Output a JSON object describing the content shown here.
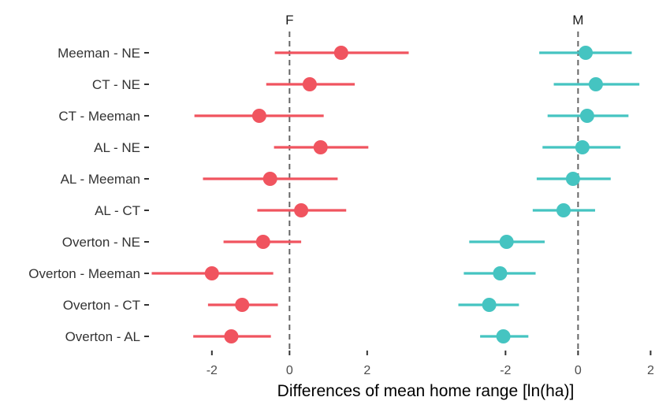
{
  "chart_data": {
    "type": "scatter",
    "subtype": "point-range",
    "xlabel": "Differences of mean home range [ln(ha)]",
    "ylabel": "",
    "categories": [
      "Meeman - NE",
      "CT - NE",
      "CT - Meeman",
      "AL - NE",
      "AL - Meeman",
      "AL - CT",
      "Overton - NE",
      "Overton - Meeman",
      "Overton - CT",
      "Overton - AL"
    ],
    "xticks": [
      "-2",
      "0",
      "2"
    ],
    "reference_line": 0,
    "grid": false,
    "legend": "none",
    "panels": [
      {
        "facet": "F",
        "color": "#F0545F",
        "xlim": [
          -3.6,
          3.1
        ],
        "estimate": [
          1.33,
          0.52,
          -0.78,
          0.8,
          -0.5,
          0.3,
          -0.68,
          -2.0,
          -1.22,
          -1.5
        ],
        "lower": [
          -0.38,
          -0.6,
          -2.45,
          -0.4,
          -2.23,
          -0.83,
          -1.7,
          -3.55,
          -2.1,
          -2.48
        ],
        "upper": [
          3.07,
          1.68,
          0.88,
          2.03,
          1.24,
          1.46,
          0.3,
          -0.42,
          -0.3,
          -0.48
        ]
      },
      {
        "facet": "M",
        "color": "#45C4C1",
        "xlim": [
          -3.55,
          2.1
        ],
        "estimate": [
          0.21,
          0.49,
          0.25,
          0.12,
          -0.14,
          -0.4,
          -1.97,
          -2.15,
          -2.45,
          -2.06
        ],
        "lower": [
          -1.07,
          -0.67,
          -0.84,
          -0.98,
          -1.14,
          -1.25,
          -3.0,
          -3.15,
          -3.3,
          -2.7
        ],
        "upper": [
          1.48,
          1.69,
          1.39,
          1.17,
          0.9,
          0.47,
          -0.92,
          -1.17,
          -1.63,
          -1.37
        ]
      }
    ]
  }
}
